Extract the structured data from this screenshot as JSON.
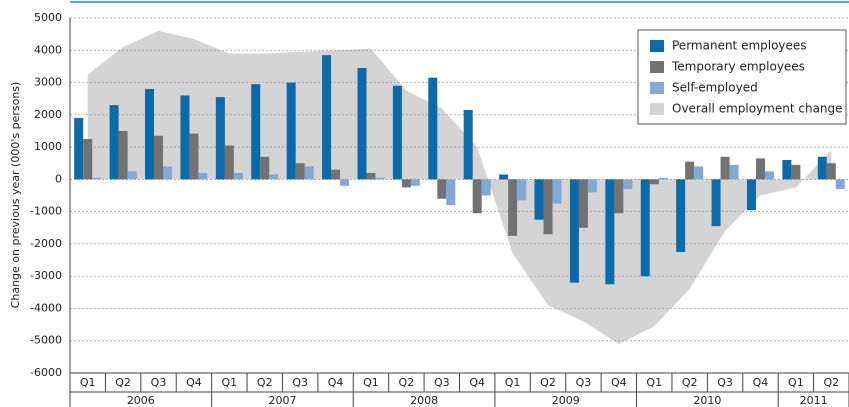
{
  "chart_data": {
    "type": "bar",
    "y_label": "Change on previous year (000's persons)",
    "categories": [
      "Q1",
      "Q2",
      "Q3",
      "Q4",
      "Q1",
      "Q2",
      "Q3",
      "Q4",
      "Q1",
      "Q2",
      "Q3",
      "Q4",
      "Q1",
      "Q2",
      "Q3",
      "Q4",
      "Q1",
      "Q2",
      "Q3",
      "Q4",
      "Q1",
      "Q2"
    ],
    "years": [
      "2006",
      "2007",
      "2008",
      "2009",
      "2010",
      "2011"
    ],
    "series": [
      {
        "name": "Permanent employees",
        "color": "#0b6aa8",
        "values": [
          1900,
          2300,
          2800,
          2600,
          2550,
          2950,
          3000,
          3850,
          3450,
          2900,
          3150,
          2150,
          150,
          -1250,
          -3200,
          -3250,
          -3000,
          -2250,
          -1450,
          -950,
          600,
          700
        ]
      },
      {
        "name": "Temporary employees",
        "color": "#727272",
        "values": [
          1250,
          1500,
          1350,
          1420,
          1050,
          700,
          500,
          300,
          200,
          -250,
          -600,
          -1050,
          -1750,
          -1700,
          -1500,
          -1050,
          -150,
          550,
          700,
          650,
          450,
          500
        ]
      },
      {
        "name": "Self-employed",
        "color": "#80a9d6",
        "values": [
          50,
          250,
          400,
          200,
          200,
          150,
          400,
          -200,
          50,
          -200,
          -800,
          -500,
          -650,
          -750,
          -400,
          -300,
          50,
          400,
          450,
          250,
          0,
          -300
        ]
      },
      {
        "name": "Overall employment change",
        "color": "#d4d4d4",
        "kind": "area",
        "values": [
          3250,
          4100,
          4600,
          4350,
          3900,
          3900,
          3950,
          4000,
          4050,
          2750,
          2200,
          1000,
          -2300,
          -3900,
          -4400,
          -5100,
          -4550,
          -3400,
          -1600,
          -500,
          -250,
          900
        ]
      }
    ],
    "ylim": [
      -6000,
      5000
    ],
    "yticks": [
      -6000,
      -5000,
      -4000,
      -3000,
      -2000,
      -1000,
      0,
      1000,
      2000,
      3000,
      4000,
      5000
    ],
    "grid": true,
    "legend": "top-right"
  }
}
